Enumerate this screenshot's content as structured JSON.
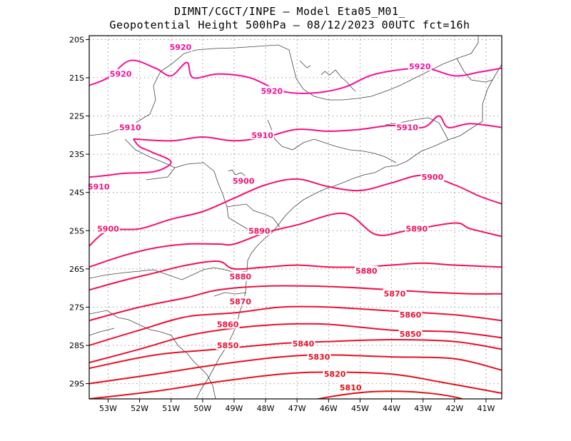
{
  "header": {
    "line1": "DIMNT/CGCT/INPE  –   Model Eta05_M01_",
    "line2": "Geopotential Height 500hPa –  08/12/2023 00UTC fct=16h"
  },
  "axes": {
    "lat_labels": [
      "20S",
      "21S",
      "22S",
      "23S",
      "24S",
      "25S",
      "26S",
      "27S",
      "28S",
      "29S"
    ],
    "lon_labels": [
      "53W",
      "52W",
      "51W",
      "50W",
      "49W",
      "48W",
      "47W",
      "46W",
      "45W",
      "44W",
      "43W",
      "42W",
      "41W"
    ]
  },
  "map_data": {
    "field": "Geopotential Height 500hPa",
    "lon_range": [
      -53.6,
      -40.5
    ],
    "lat_range": [
      -29.4,
      -19.9
    ],
    "contours": [
      {
        "level": 5810,
        "color": "#e01010",
        "labels": [
          [
            "5810",
            -45.3,
            -29.1
          ]
        ],
        "points": [
          [
            -53.6,
            -30.6
          ],
          [
            -49,
            -29.9
          ],
          [
            -46,
            -29.35
          ],
          [
            -44,
            -29.2
          ],
          [
            -42,
            -29.35
          ],
          [
            -40.5,
            -29.8
          ]
        ]
      },
      {
        "level": 5820,
        "color": "#e41018",
        "labels": [
          [
            "5820",
            -45.8,
            -28.75
          ]
        ],
        "points": [
          [
            -53.6,
            -29.4
          ],
          [
            -51.5,
            -29.2
          ],
          [
            -49.5,
            -28.95
          ],
          [
            -47.5,
            -28.75
          ],
          [
            -46,
            -28.7
          ],
          [
            -44,
            -28.75
          ],
          [
            -42.5,
            -28.95
          ],
          [
            -40.5,
            -29.25
          ]
        ]
      },
      {
        "level": 5830,
        "color": "#e61020",
        "labels": [
          [
            "5830",
            -46.3,
            -28.3
          ]
        ],
        "points": [
          [
            -53.6,
            -29.0
          ],
          [
            -51.5,
            -28.75
          ],
          [
            -49.5,
            -28.5
          ],
          [
            -47.5,
            -28.3
          ],
          [
            -46,
            -28.25
          ],
          [
            -44,
            -28.3
          ],
          [
            -42,
            -28.35
          ],
          [
            -40.5,
            -28.65
          ]
        ]
      },
      {
        "level": 5840,
        "color": "#e81028",
        "labels": [
          [
            "5840",
            -46.8,
            -27.95
          ]
        ],
        "points": [
          [
            -53.6,
            -28.6
          ],
          [
            -51.5,
            -28.25
          ],
          [
            -49.5,
            -28.1
          ],
          [
            -47.5,
            -27.95
          ],
          [
            -46,
            -27.9
          ],
          [
            -44,
            -27.85
          ],
          [
            -42,
            -27.9
          ],
          [
            -40.5,
            -28.1
          ]
        ]
      },
      {
        "level": 5850,
        "color": "#ea1030",
        "labels": [
          [
            "5850",
            -49.2,
            -28.0
          ],
          [
            "5850",
            -43.4,
            -27.7
          ]
        ],
        "points": [
          [
            -53.6,
            -28.45
          ],
          [
            -52,
            -28.1
          ],
          [
            -50.5,
            -27.75
          ],
          [
            -49,
            -27.55
          ],
          [
            -47.5,
            -27.45
          ],
          [
            -46,
            -27.45
          ],
          [
            -44,
            -27.6
          ],
          [
            -42,
            -27.65
          ],
          [
            -40.5,
            -27.8
          ]
        ]
      },
      {
        "level": 5860,
        "color": "#ec1038",
        "labels": [
          [
            "5860",
            -49.2,
            -27.45
          ],
          [
            "5860",
            -43.4,
            -27.2
          ]
        ],
        "points": [
          [
            -53.6,
            -28.0
          ],
          [
            -52,
            -27.6
          ],
          [
            -50.5,
            -27.25
          ],
          [
            -49,
            -27.15
          ],
          [
            -47.5,
            -27.0
          ],
          [
            -46,
            -27.0
          ],
          [
            -44,
            -27.1
          ],
          [
            -42,
            -27.2
          ],
          [
            -40.5,
            -27.35
          ]
        ]
      },
      {
        "level": 5870,
        "color": "#ee1040",
        "labels": [
          [
            "5870",
            -48.8,
            -26.85
          ],
          [
            "5870",
            -43.9,
            -26.65
          ]
        ],
        "points": [
          [
            -53.6,
            -27.35
          ],
          [
            -52,
            -27.0
          ],
          [
            -50.5,
            -26.75
          ],
          [
            -49.5,
            -26.55
          ],
          [
            -48,
            -26.45
          ],
          [
            -46.5,
            -26.45
          ],
          [
            -45,
            -26.5
          ],
          [
            -43,
            -26.6
          ],
          [
            -41.5,
            -26.65
          ],
          [
            -40.5,
            -26.65
          ]
        ]
      },
      {
        "level": 5880,
        "color": "#f01050",
        "labels": [
          [
            "5880",
            -48.8,
            -26.2
          ],
          [
            "5880",
            -44.8,
            -26.05
          ]
        ],
        "points": [
          [
            -53.6,
            -26.55
          ],
          [
            -52.5,
            -26.3
          ],
          [
            -51.5,
            -26.1
          ],
          [
            -50.5,
            -25.9
          ],
          [
            -49.5,
            -25.8
          ],
          [
            -49,
            -26.0
          ],
          [
            -48,
            -25.95
          ],
          [
            -47,
            -25.9
          ],
          [
            -46,
            -25.95
          ],
          [
            -45,
            -25.95
          ],
          [
            -44,
            -25.9
          ],
          [
            -43,
            -25.85
          ],
          [
            -42,
            -25.9
          ],
          [
            -40.5,
            -25.95
          ]
        ]
      },
      {
        "level": 5890,
        "color": "#f21060",
        "labels": [
          [
            "5890",
            -48.2,
            -25.0
          ],
          [
            "5890",
            -43.2,
            -24.95
          ]
        ],
        "points": [
          [
            -53.6,
            -25.95
          ],
          [
            -52.5,
            -25.65
          ],
          [
            -51.5,
            -25.45
          ],
          [
            -50.5,
            -25.35
          ],
          [
            -49.5,
            -25.35
          ],
          [
            -49,
            -25.35
          ],
          [
            -48,
            -25.05
          ],
          [
            -47,
            -24.85
          ],
          [
            -45.5,
            -24.55
          ],
          [
            -44.5,
            -25.1
          ],
          [
            -43.5,
            -25.0
          ],
          [
            -42,
            -24.8
          ],
          [
            -41.5,
            -24.95
          ],
          [
            -40.5,
            -25.15
          ]
        ]
      },
      {
        "level": 5900,
        "color": "#f41070",
        "labels": [
          [
            "5900",
            -53.0,
            -24.95
          ],
          [
            "5900",
            -48.7,
            -23.7
          ],
          [
            "5900",
            -42.7,
            -23.6
          ]
        ],
        "points": [
          [
            -53.6,
            -25.4
          ],
          [
            -53,
            -25.0
          ],
          [
            -52,
            -24.95
          ],
          [
            -51,
            -24.7
          ],
          [
            -50,
            -24.5
          ],
          [
            -49,
            -24.15
          ],
          [
            -48,
            -23.8
          ],
          [
            -47,
            -23.65
          ],
          [
            -46,
            -23.85
          ],
          [
            -45,
            -23.95
          ],
          [
            -44,
            -23.75
          ],
          [
            -43,
            -23.55
          ],
          [
            -42,
            -23.8
          ],
          [
            -41.2,
            -24.1
          ],
          [
            -40.5,
            -24.3
          ]
        ]
      },
      {
        "level": 5910,
        "color": "#f41080",
        "labels": [
          [
            "5910",
            -53.3,
            -23.85
          ],
          [
            "5910",
            -52.3,
            -22.3
          ],
          [
            "5910",
            -48.1,
            -22.5
          ],
          [
            "5910",
            -43.5,
            -22.3
          ]
        ],
        "points": [
          [
            -53.6,
            -23.6
          ],
          [
            -53,
            -23.55
          ],
          [
            -52.5,
            -23.5
          ],
          [
            -51.5,
            -23.45
          ],
          [
            -51,
            -23.2
          ],
          [
            -51.6,
            -22.95
          ],
          [
            -52,
            -22.8
          ],
          [
            -52.2,
            -22.6
          ]
        ]
      },
      {
        "level": 5910,
        "color": "#f41080",
        "labels": [],
        "points": [
          [
            -52.2,
            -22.6
          ],
          [
            -51,
            -22.65
          ],
          [
            -50,
            -22.55
          ],
          [
            -49,
            -22.65
          ],
          [
            -48,
            -22.55
          ],
          [
            -47,
            -22.35
          ],
          [
            -46,
            -22.4
          ],
          [
            -45,
            -22.35
          ],
          [
            -44,
            -22.25
          ],
          [
            -43,
            -22.3
          ],
          [
            -42.5,
            -22.0
          ],
          [
            -42.2,
            -22.3
          ],
          [
            -41.5,
            -22.2
          ],
          [
            -40.5,
            -22.3
          ]
        ]
      },
      {
        "level": 5920,
        "color": "#f410a0",
        "labels": [
          [
            "5920",
            -52.6,
            -20.9
          ],
          [
            "5920",
            -50.7,
            -20.2
          ],
          [
            "5920",
            -47.8,
            -21.35
          ],
          [
            "5920",
            -43.1,
            -20.7
          ]
        ],
        "points": [
          [
            -53.6,
            -21.2
          ],
          [
            -53,
            -21.0
          ],
          [
            -52.3,
            -20.55
          ],
          [
            -51.5,
            -20.75
          ],
          [
            -51,
            -20.95
          ],
          [
            -50.5,
            -20.6
          ],
          [
            -50.3,
            -21.0
          ],
          [
            -49.5,
            -20.9
          ],
          [
            -48.5,
            -21.0
          ],
          [
            -47.5,
            -21.35
          ],
          [
            -46.5,
            -21.4
          ],
          [
            -45.5,
            -21.25
          ],
          [
            -44.5,
            -20.9
          ],
          [
            -43,
            -20.75
          ],
          [
            -42,
            -20.95
          ],
          [
            -41.2,
            -20.85
          ],
          [
            -40.5,
            -20.75
          ]
        ]
      }
    ]
  }
}
